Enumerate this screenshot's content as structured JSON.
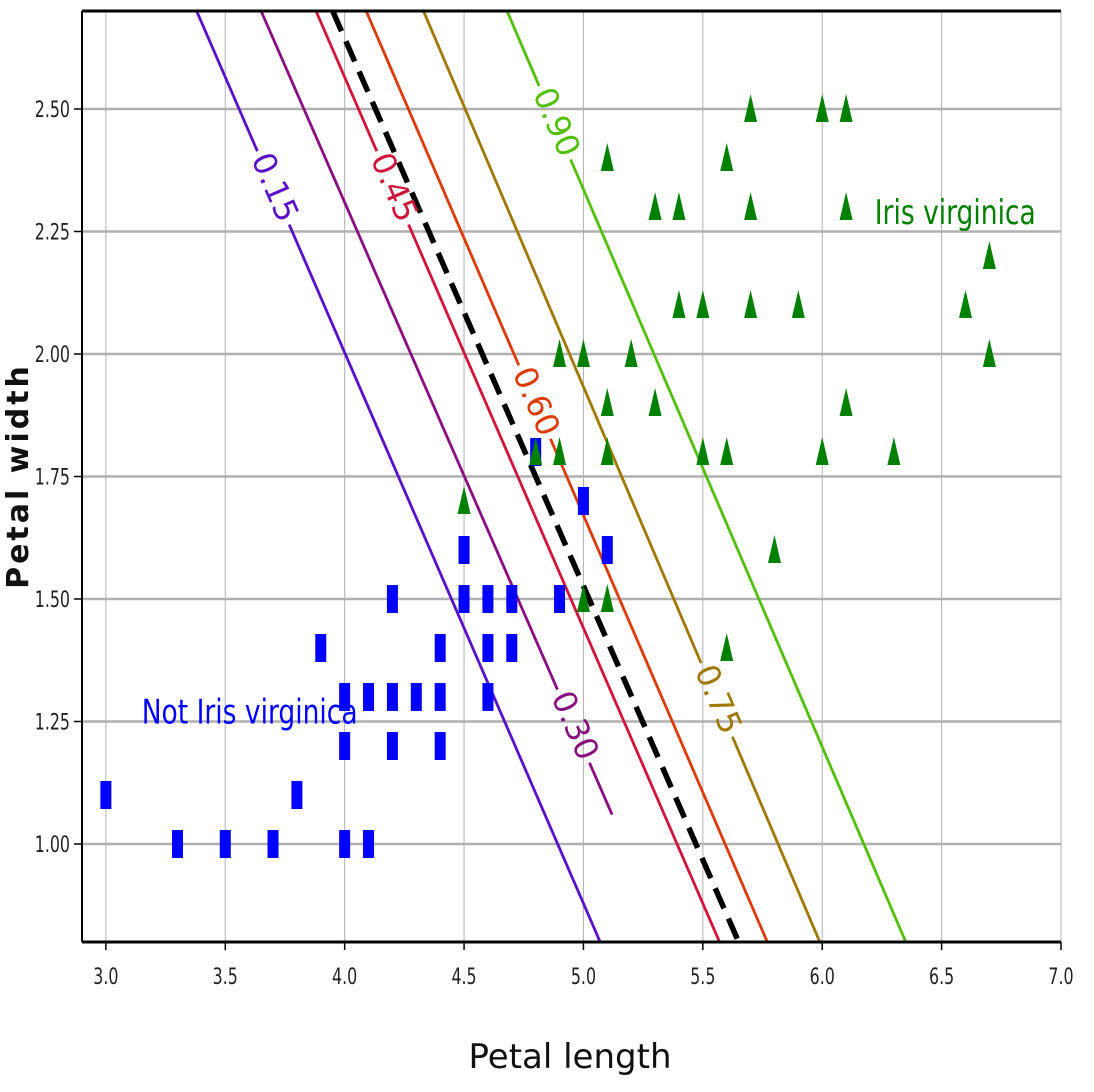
{
  "chart_data": {
    "type": "scatter",
    "xlabel": "Petal length",
    "ylabel": "Petal width",
    "xlim": [
      2.9,
      7.0
    ],
    "ylim": [
      0.8,
      2.7
    ],
    "x_ticks": [
      "3.0",
      "3.5",
      "4.0",
      "4.5",
      "5.0",
      "5.5",
      "6.0",
      "6.5",
      "7.0"
    ],
    "y_ticks": [
      "1.00",
      "1.25",
      "1.50",
      "1.75",
      "2.00",
      "2.25",
      "2.50"
    ],
    "grid": true,
    "annotations": [
      {
        "text": "Not Iris virginica",
        "x": 3.15,
        "y": 1.27,
        "color": "#0000ff"
      },
      {
        "text": "Iris virginica",
        "x": 6.22,
        "y": 2.29,
        "color": "#008000"
      }
    ],
    "decision_boundary": {
      "style": "dashed",
      "color": "#000000",
      "x": [
        3.95,
        5.65
      ],
      "y": [
        2.7,
        0.8
      ]
    },
    "contours": [
      {
        "label": "0.15",
        "color": "#5a10c8",
        "x": [
          3.38,
          5.07
        ],
        "y": [
          2.7,
          0.8
        ]
      },
      {
        "label": "0.30",
        "color": "#8b0e80",
        "x": [
          3.65,
          5.12
        ],
        "y": [
          2.7,
          1.06
        ]
      },
      {
        "label": "0.45",
        "color": "#d0153a",
        "x": [
          3.88,
          5.57
        ],
        "y": [
          2.7,
          0.8
        ]
      },
      {
        "label": "0.60",
        "color": "#dc3a07",
        "x": [
          4.09,
          5.77
        ],
        "y": [
          2.7,
          0.8
        ]
      },
      {
        "label": "0.75",
        "color": "#a07800",
        "x": [
          4.33,
          5.99
        ],
        "y": [
          2.7,
          0.8
        ]
      },
      {
        "label": "0.90",
        "color": "#52c00a",
        "x": [
          4.68,
          6.35
        ],
        "y": [
          2.7,
          0.8
        ]
      }
    ],
    "series": [
      {
        "name": "Not Iris virginica",
        "marker": "square",
        "color": "#0000ff",
        "points": [
          [
            3.0,
            1.1
          ],
          [
            3.3,
            1.0
          ],
          [
            3.5,
            1.0
          ],
          [
            3.7,
            1.0
          ],
          [
            3.8,
            1.1
          ],
          [
            3.9,
            1.4
          ],
          [
            4.0,
            1.0
          ],
          [
            4.0,
            1.2
          ],
          [
            4.0,
            1.3
          ],
          [
            4.1,
            1.0
          ],
          [
            4.1,
            1.3
          ],
          [
            4.2,
            1.2
          ],
          [
            4.2,
            1.3
          ],
          [
            4.2,
            1.5
          ],
          [
            4.3,
            1.3
          ],
          [
            4.4,
            1.2
          ],
          [
            4.4,
            1.3
          ],
          [
            4.4,
            1.4
          ],
          [
            4.5,
            1.5
          ],
          [
            4.5,
            1.6
          ],
          [
            4.6,
            1.3
          ],
          [
            4.6,
            1.4
          ],
          [
            4.6,
            1.5
          ],
          [
            4.7,
            1.4
          ],
          [
            4.7,
            1.5
          ],
          [
            4.8,
            1.8
          ],
          [
            4.9,
            1.5
          ],
          [
            5.0,
            1.7
          ],
          [
            5.1,
            1.6
          ]
        ]
      },
      {
        "name": "Iris virginica",
        "marker": "triangle",
        "color": "#008000",
        "points": [
          [
            4.5,
            1.7
          ],
          [
            4.8,
            1.8
          ],
          [
            4.9,
            1.8
          ],
          [
            4.9,
            2.0
          ],
          [
            5.0,
            1.5
          ],
          [
            5.0,
            2.0
          ],
          [
            5.1,
            1.5
          ],
          [
            5.1,
            1.8
          ],
          [
            5.1,
            1.9
          ],
          [
            5.1,
            2.4
          ],
          [
            5.2,
            2.0
          ],
          [
            5.3,
            1.9
          ],
          [
            5.3,
            2.3
          ],
          [
            5.4,
            2.1
          ],
          [
            5.4,
            2.3
          ],
          [
            5.5,
            1.8
          ],
          [
            5.5,
            2.1
          ],
          [
            5.6,
            1.4
          ],
          [
            5.6,
            1.8
          ],
          [
            5.6,
            2.4
          ],
          [
            5.7,
            2.1
          ],
          [
            5.7,
            2.3
          ],
          [
            5.7,
            2.5
          ],
          [
            5.8,
            1.6
          ],
          [
            5.9,
            2.1
          ],
          [
            6.0,
            1.8
          ],
          [
            6.0,
            2.5
          ],
          [
            6.1,
            1.9
          ],
          [
            6.1,
            2.3
          ],
          [
            6.1,
            2.5
          ],
          [
            6.3,
            1.8
          ],
          [
            6.6,
            2.1
          ],
          [
            6.7,
            2.0
          ],
          [
            6.7,
            2.2
          ]
        ]
      }
    ]
  }
}
